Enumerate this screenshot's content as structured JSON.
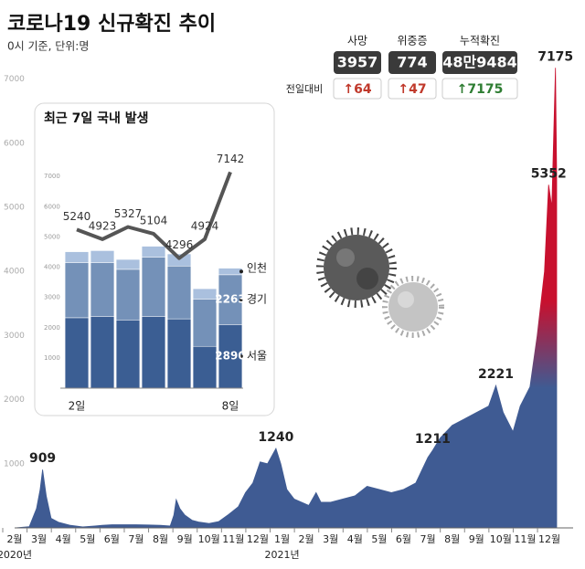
{
  "chart_data": [
    {
      "type": "area",
      "title": "코로나19 신규확진 추이",
      "subtitle": "0시 기준, 단위:명",
      "color": "#3f5b93",
      "highlight_color": "#c8102e",
      "x": [
        0,
        0.6,
        0.9,
        1.05,
        1.15,
        1.3,
        1.5,
        1.8,
        2.3,
        2.8,
        3.3,
        3.6,
        4.0,
        4.5,
        5.0,
        5.5,
        6.0,
        6.4,
        6.55,
        6.65,
        6.8,
        7.0,
        7.3,
        7.6,
        8.0,
        8.4,
        8.8,
        9.2,
        9.5,
        9.8,
        10.1,
        10.4,
        10.75,
        10.95,
        11.2,
        11.5,
        11.8,
        12.1,
        12.4,
        12.6,
        13,
        13.5,
        14,
        14.5,
        15,
        15.5,
        16,
        16.5,
        17.0,
        17.2,
        17.5,
        18,
        18.5,
        19,
        19.5,
        19.8,
        20.1,
        20.5,
        20.8,
        21.2,
        21.5,
        21.8,
        21.97,
        22.1,
        22.25,
        22.3
      ],
      "values": [
        0,
        20,
        300,
        600,
        909,
        500,
        150,
        90,
        40,
        15,
        30,
        40,
        50,
        50,
        50,
        45,
        40,
        30,
        200,
        441,
        300,
        200,
        120,
        90,
        70,
        100,
        210,
        330,
        550,
        700,
        1030,
        1000,
        1240,
        1000,
        600,
        450,
        400,
        350,
        550,
        400,
        400,
        450,
        500,
        650,
        600,
        550,
        600,
        700,
        1100,
        1211,
        1400,
        1600,
        1700,
        1800,
        1900,
        2221,
        1800,
        1500,
        1900,
        2200,
        3000,
        4000,
        5352,
        5000,
        7175,
        5500
      ],
      "peaks": {
        "x": [
          1.15,
          10.75,
          17.2,
          19.8,
          21.97,
          22.25
        ],
        "values": [
          909,
          1240,
          1211,
          2221,
          5352,
          7175
        ]
      },
      "xlim": [
        0,
        22.6
      ],
      "xticks": [
        {
          "value": 0,
          "label": "2월"
        },
        {
          "value": 1,
          "label": "3월"
        },
        {
          "value": 2,
          "label": "4월"
        },
        {
          "value": 3,
          "label": "5월"
        },
        {
          "value": 4,
          "label": "6월"
        },
        {
          "value": 5,
          "label": "7월"
        },
        {
          "value": 6,
          "label": "8월"
        },
        {
          "value": 7,
          "label": "9월"
        },
        {
          "value": 8,
          "label": "10월"
        },
        {
          "value": 9,
          "label": "11월"
        },
        {
          "value": 10,
          "label": "12월"
        },
        {
          "value": 11,
          "label": "1월"
        },
        {
          "value": 12,
          "label": "2월"
        },
        {
          "value": 13,
          "label": "3월"
        },
        {
          "value": 14,
          "label": "4월"
        },
        {
          "value": 15,
          "label": "5월"
        },
        {
          "value": 16,
          "label": "6월"
        },
        {
          "value": 17,
          "label": "7월"
        },
        {
          "value": 18,
          "label": "8월"
        },
        {
          "value": 19,
          "label": "9월"
        },
        {
          "value": 20,
          "label": "10월"
        },
        {
          "value": 21,
          "label": "11월"
        },
        {
          "value": 22,
          "label": "12월"
        }
      ],
      "x_annotations": [
        {
          "x": 0,
          "text": "2020년"
        },
        {
          "x": 11,
          "text": "2021년"
        }
      ],
      "ylim": [
        0,
        7500
      ],
      "yticks": [
        1000,
        2000,
        3000,
        4000,
        5000,
        6000,
        7000
      ],
      "grid": false
    },
    {
      "type": "bar_line",
      "title": "최근 7일 국내 발생",
      "categories": [
        "2일",
        null,
        null,
        null,
        null,
        null,
        "8일"
      ],
      "series": [
        {
          "name": "서울",
          "color": "#3b5e93",
          "values": [
            3200,
            3250,
            3100,
            3250,
            3150,
            1900,
            2890
          ],
          "axis": "y2"
        },
        {
          "name": "경기",
          "color": "#7491b8",
          "values": [
            2500,
            2450,
            2300,
            2700,
            2400,
            2150,
            2263
          ],
          "axis": "y2"
        },
        {
          "name": "인천",
          "color": "#aac0de",
          "values": [
            500,
            550,
            450,
            500,
            550,
            470,
            300
          ],
          "axis": "y2"
        }
      ],
      "line": {
        "color": "#555555",
        "values": [
          5240,
          4923,
          5327,
          5104,
          4296,
          4924,
          7142
        ]
      },
      "ylim": [
        0,
        8000
      ],
      "yticks": [
        1000,
        2000,
        3000,
        4000,
        5000,
        6000,
        7000
      ],
      "y2lim": [
        0,
        11000
      ]
    }
  ],
  "stats": {
    "compare_label": "전일대비",
    "items": [
      {
        "name": "사망",
        "value": "3957",
        "change": "↑64",
        "change_color": "#c0392b"
      },
      {
        "name": "위중증",
        "value": "774",
        "change": "↑47",
        "change_color": "#c0392b"
      },
      {
        "name": "누적확진",
        "value": "48만9484",
        "change": "↑7175",
        "change_color": "#2e7d32"
      }
    ]
  }
}
